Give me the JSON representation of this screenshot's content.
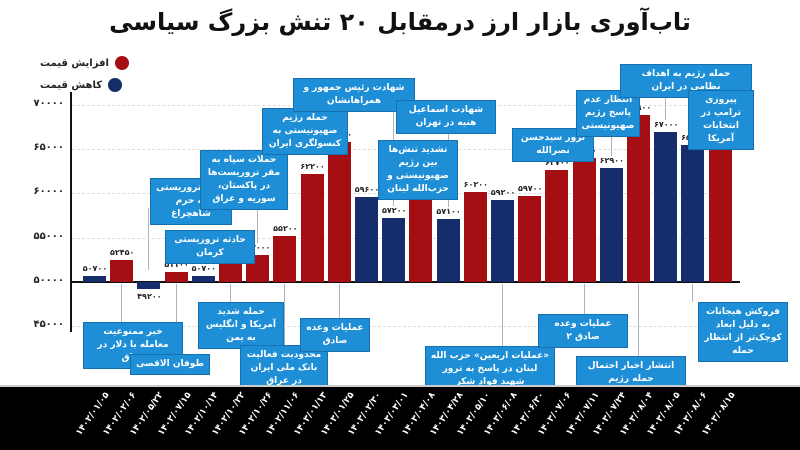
{
  "title": "تاب‌آوری بازار ارز درمقابل ۲۰ تنش بزرگ سیاسی",
  "legend": [
    {
      "label": "افزایش قیمت",
      "color": "#a50e12"
    },
    {
      "label": "کاهش قیمت",
      "color": "#152e6b"
    }
  ],
  "y_ticks": [
    "۷۰۰۰۰",
    "۶۵۰۰۰",
    "۶۰۰۰۰",
    "۵۵۰۰۰",
    "۵۰۰۰۰",
    "۴۵۰۰۰"
  ],
  "chart_data": {
    "type": "bar",
    "title": "تاب‌آوری بازار ارز درمقابل ۲۰ تنش بزرگ سیاسی",
    "xlabel": "",
    "ylabel": "",
    "ylim": [
      45000,
      70000
    ],
    "baseline": 50000,
    "legend_position": "top-left",
    "categories": [
      "۱۴۰۲/۰۱/۰۵",
      "۱۴۰۲/۰۲/۰۶",
      "۱۴۰۲/۰۵/۲۲",
      "۱۴۰۲/۰۷/۱۵",
      "۱۴۰۲/۱۰/۱۴",
      "۱۴۰۲/۱۰/۲۲",
      "۱۴۰۲/۱۰/۲۶",
      "۱۴۰۲/۱۱/۰۶",
      "۱۴۰۳/۰۱/۱۳",
      "۱۴۰۳/۰۱/۲۵",
      "۱۴۰۳/۰۲/۳۰",
      "۱۴۰۳/۰۳/۰۱",
      "۱۴۰۳/۰۴/۰۸",
      "۱۴۰۳/۰۴/۲۸",
      "۱۴۰۳/۰۵/۱۰",
      "۱۴۰۳/۰۶/۰۸",
      "۱۴۰۳/۰۶/۳۰",
      "۱۴۰۳/۰۷/۰۶",
      "۱۴۰۳/۰۷/۱۱",
      "۱۴۰۳/۰۷/۲۴",
      "۱۴۰۳/۰۸/۰۴",
      "۱۴۰۳/۰۸/۰۵",
      "۱۴۰۳/۰۸/۰۶",
      "۱۴۰۳/۰۸/۱۵"
    ],
    "values": [
      50700,
      52450,
      49200,
      51100,
      50700,
      52100,
      53000,
      55200,
      62200,
      65800,
      59600,
      57200,
      61800,
      57100,
      60200,
      59200,
      59700,
      62700,
      64050,
      62900,
      68900,
      67000,
      65500,
      68500
    ],
    "value_labels": [
      "۵۰۷۰۰",
      "۵۲۴۵۰",
      "۴۹۲۰۰",
      "۵۱۱۰۰",
      "۵۰۷۰۰",
      "۵۲۱۰۰",
      "۵۳۰۰۰",
      "۵۵۲۰۰",
      "۶۲۲۰۰",
      "۶۵۸۰۰",
      "۵۹۶۰۰",
      "۵۷۲۰۰",
      "۶۱۸۰۰",
      "۵۷۱۰۰",
      "۶۰۲۰۰",
      "۵۹۲۰۰",
      "۵۹۷۰۰",
      "۶۲۷۰۰",
      "۶۴۰۵۰",
      "۶۲۹۰۰",
      "۶۸۹۰۰",
      "۶۷۰۰۰",
      "۶۵۵۰۰",
      "۶۸۵۰۰"
    ],
    "direction": [
      "down",
      "up",
      "down",
      "up",
      "down",
      "up",
      "up",
      "up",
      "up",
      "up",
      "down",
      "down",
      "up",
      "down",
      "up",
      "down",
      "up",
      "up",
      "up",
      "down",
      "up",
      "down",
      "down",
      "up"
    ],
    "annotations": [
      {
        "text": "خبر ممنوعیت معامله با دلار در عراق",
        "bar": 1,
        "pos": "below"
      },
      {
        "text": "حمله تروریستی به حرم شاهچراغ",
        "bar": 2,
        "pos": "above"
      },
      {
        "text": "طوفان الاقصی",
        "bar": 3,
        "pos": "below"
      },
      {
        "text": "حادثه تروریستی کرمان",
        "bar": 4,
        "pos": "above"
      },
      {
        "text": "حمله شدید آمریکا و انگلیس به یمن",
        "bar": 5,
        "pos": "below"
      },
      {
        "text": "حملات سپاه به مقر تروریست‌ها در پاکستان، سوریه و عراق",
        "bar": 6,
        "pos": "above"
      },
      {
        "text": "محدودیت فعالیت بانک ملی ایران در عراق",
        "bar": 7,
        "pos": "below"
      },
      {
        "text": "حمله رژیم صهیونیستی به کنسولگری ایران",
        "bar": 9,
        "pos": "above"
      },
      {
        "text": "عملیات وعده صادق",
        "bar": 9,
        "pos": "below"
      },
      {
        "text": "شهادت رئیس جمهور و همراهانشان",
        "bar": 11,
        "pos": "above"
      },
      {
        "text": "تشدید تنش‌ها بین رژیم صهیونیستی و حزب‌الله لبنان",
        "bar": 12,
        "pos": "above"
      },
      {
        "text": "شهادت اسماعیل هنیه در تهران",
        "bar": 13,
        "pos": "above"
      },
      {
        "text": "«عملیات اربعین» حزب الله لبنان در پاسخ به ترور شهید فواد شکر",
        "bar": 15,
        "pos": "below"
      },
      {
        "text": "ترور سیدحسن نصرالله",
        "bar": 17,
        "pos": "above"
      },
      {
        "text": "عملیات وعده صادق ۲",
        "bar": 18,
        "pos": "below"
      },
      {
        "text": "انتظار عدم پاسخ رژیم صهیونیستی",
        "bar": 19,
        "pos": "above"
      },
      {
        "text": "انتشار اخبار احتمال حمله رژیم",
        "bar": 20,
        "pos": "below"
      },
      {
        "text": "حمله رژیم به اهداف نظامی در ایران",
        "bar": 21,
        "pos": "above"
      },
      {
        "text": "فروکش هیجانات به دلیل ابعاد کوچک‌تر از انتظار حمله",
        "bar": 22,
        "pos": "below"
      },
      {
        "text": "پیروزی ترامپ در انتخابات آمریکا",
        "bar": 23,
        "pos": "above"
      }
    ]
  }
}
